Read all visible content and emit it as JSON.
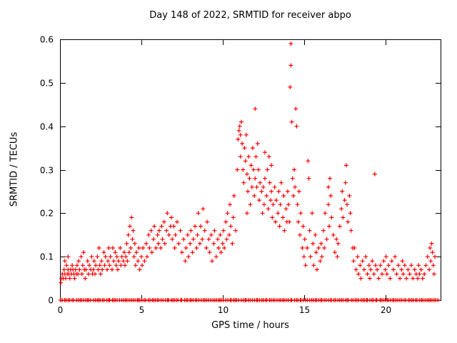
{
  "page": {
    "background": "#ffffff"
  },
  "chart_data": {
    "type": "scatter",
    "title": "Day 148 of 2022, SRMTID for receiver abpo",
    "xlabel": "GPS time / hours",
    "ylabel": "SRMTID / TECUs",
    "xlim": [
      0,
      23.4
    ],
    "ylim": [
      0,
      0.6
    ],
    "x_ticks": [
      0,
      5,
      10,
      15,
      20
    ],
    "x_tick_labels": [
      "0",
      "5",
      "10",
      "15",
      "20"
    ],
    "y_ticks": [
      0,
      0.1,
      0.2,
      0.3,
      0.4,
      0.5,
      0.6
    ],
    "y_tick_labels": [
      "0",
      "0.1",
      "0.2",
      "0.3",
      "0.4",
      "0.5",
      "0.6"
    ],
    "grid": false,
    "legend": "none",
    "marker": "plus",
    "marker_color": "#ff0000",
    "axis_color": "#000000",
    "zero_band": {
      "y": 0,
      "x_min": 0.05,
      "x_max": 23.25,
      "count": 200,
      "note": "dense row of + markers at y=0 across the full time range"
    },
    "points": [
      [
        0.05,
        0.04
      ],
      [
        0.1,
        0.05
      ],
      [
        0.15,
        0.06
      ],
      [
        0.2,
        0.05
      ],
      [
        0.25,
        0.07
      ],
      [
        0.3,
        0.06
      ],
      [
        0.3,
        0.09
      ],
      [
        0.35,
        0.05
      ],
      [
        0.4,
        0.08
      ],
      [
        0.45,
        0.06
      ],
      [
        0.5,
        0.07
      ],
      [
        0.5,
        0.1
      ],
      [
        0.55,
        0.06
      ],
      [
        0.6,
        0.05
      ],
      [
        0.65,
        0.07
      ],
      [
        0.7,
        0.06
      ],
      [
        0.75,
        0.08
      ],
      [
        0.8,
        0.07
      ],
      [
        0.85,
        0.06
      ],
      [
        0.9,
        0.05
      ],
      [
        0.95,
        0.07
      ],
      [
        1.0,
        0.06
      ],
      [
        1.05,
        0.08
      ],
      [
        1.1,
        0.06
      ],
      [
        1.15,
        0.09
      ],
      [
        1.2,
        0.07
      ],
      [
        1.3,
        0.1
      ],
      [
        1.35,
        0.06
      ],
      [
        1.4,
        0.08
      ],
      [
        1.45,
        0.11
      ],
      [
        1.5,
        0.07
      ],
      [
        1.55,
        0.05
      ],
      [
        1.6,
        0.07
      ],
      [
        1.7,
        0.09
      ],
      [
        1.75,
        0.06
      ],
      [
        1.8,
        0.08
      ],
      [
        1.9,
        0.07
      ],
      [
        1.95,
        0.1
      ],
      [
        2.0,
        0.06
      ],
      [
        2.05,
        0.07
      ],
      [
        2.1,
        0.09
      ],
      [
        2.15,
        0.06
      ],
      [
        2.2,
        0.08
      ],
      [
        2.3,
        0.1
      ],
      [
        2.35,
        0.07
      ],
      [
        2.4,
        0.12
      ],
      [
        2.45,
        0.08
      ],
      [
        2.5,
        0.06
      ],
      [
        2.55,
        0.09
      ],
      [
        2.6,
        0.07
      ],
      [
        2.7,
        0.11
      ],
      [
        2.75,
        0.08
      ],
      [
        2.8,
        0.1
      ],
      [
        2.9,
        0.07
      ],
      [
        2.95,
        0.09
      ],
      [
        3.0,
        0.12
      ],
      [
        3.05,
        0.08
      ],
      [
        3.1,
        0.1
      ],
      [
        3.2,
        0.07
      ],
      [
        3.25,
        0.12
      ],
      [
        3.3,
        0.09
      ],
      [
        3.4,
        0.11
      ],
      [
        3.45,
        0.08
      ],
      [
        3.5,
        0.1
      ],
      [
        3.55,
        0.07
      ],
      [
        3.6,
        0.09
      ],
      [
        3.7,
        0.12
      ],
      [
        3.75,
        0.08
      ],
      [
        3.8,
        0.1
      ],
      [
        3.9,
        0.09
      ],
      [
        3.95,
        0.11
      ],
      [
        4.0,
        0.08
      ],
      [
        4.05,
        0.1
      ],
      [
        4.1,
        0.13
      ],
      [
        4.15,
        0.09
      ],
      [
        4.2,
        0.15
      ],
      [
        4.25,
        0.11
      ],
      [
        4.3,
        0.17
      ],
      [
        4.35,
        0.12
      ],
      [
        4.4,
        0.19
      ],
      [
        4.45,
        0.14
      ],
      [
        4.5,
        0.16
      ],
      [
        4.55,
        0.1
      ],
      [
        4.6,
        0.13
      ],
      [
        4.65,
        0.08
      ],
      [
        4.7,
        0.11
      ],
      [
        4.8,
        0.09
      ],
      [
        4.85,
        0.12
      ],
      [
        4.9,
        0.07
      ],
      [
        5.0,
        0.1
      ],
      [
        5.05,
        0.08
      ],
      [
        5.1,
        0.12
      ],
      [
        5.2,
        0.09
      ],
      [
        5.3,
        0.13
      ],
      [
        5.35,
        0.1
      ],
      [
        5.45,
        0.15
      ],
      [
        5.5,
        0.12
      ],
      [
        5.6,
        0.16
      ],
      [
        5.65,
        0.11
      ],
      [
        5.75,
        0.14
      ],
      [
        5.8,
        0.17
      ],
      [
        5.9,
        0.12
      ],
      [
        6.0,
        0.15
      ],
      [
        6.05,
        0.13
      ],
      [
        6.1,
        0.16
      ],
      [
        6.2,
        0.12
      ],
      [
        6.25,
        0.17
      ],
      [
        6.3,
        0.14
      ],
      [
        6.4,
        0.18
      ],
      [
        6.45,
        0.13
      ],
      [
        6.55,
        0.16
      ],
      [
        6.6,
        0.2
      ],
      [
        6.7,
        0.15
      ],
      [
        6.8,
        0.17
      ],
      [
        6.85,
        0.19
      ],
      [
        6.9,
        0.14
      ],
      [
        7.0,
        0.17
      ],
      [
        7.05,
        0.12
      ],
      [
        7.1,
        0.15
      ],
      [
        7.2,
        0.18
      ],
      [
        7.3,
        0.13
      ],
      [
        7.4,
        0.16
      ],
      [
        7.5,
        0.11
      ],
      [
        7.6,
        0.14
      ],
      [
        7.7,
        0.09
      ],
      [
        7.75,
        0.12
      ],
      [
        7.85,
        0.15
      ],
      [
        7.9,
        0.1
      ],
      [
        8.0,
        0.13
      ],
      [
        8.05,
        0.16
      ],
      [
        8.15,
        0.11
      ],
      [
        8.2,
        0.14
      ],
      [
        8.3,
        0.17
      ],
      [
        8.4,
        0.12
      ],
      [
        8.45,
        0.15
      ],
      [
        8.5,
        0.2
      ],
      [
        8.6,
        0.13
      ],
      [
        8.65,
        0.17
      ],
      [
        8.75,
        0.14
      ],
      [
        8.8,
        0.21
      ],
      [
        8.9,
        0.16
      ],
      [
        9.0,
        0.12
      ],
      [
        9.05,
        0.18
      ],
      [
        9.15,
        0.14
      ],
      [
        9.2,
        0.11
      ],
      [
        9.3,
        0.15
      ],
      [
        9.35,
        0.09
      ],
      [
        9.45,
        0.13
      ],
      [
        9.5,
        0.16
      ],
      [
        9.6,
        0.1
      ],
      [
        9.7,
        0.14
      ],
      [
        9.75,
        0.12
      ],
      [
        9.85,
        0.15
      ],
      [
        9.9,
        0.11
      ],
      [
        10.0,
        0.13
      ],
      [
        10.05,
        0.16
      ],
      [
        10.1,
        0.12
      ],
      [
        10.2,
        0.18
      ],
      [
        10.25,
        0.14
      ],
      [
        10.3,
        0.2
      ],
      [
        10.4,
        0.15
      ],
      [
        10.45,
        0.22
      ],
      [
        10.5,
        0.17
      ],
      [
        10.6,
        0.13
      ],
      [
        10.65,
        0.19
      ],
      [
        10.7,
        0.24
      ],
      [
        10.8,
        0.16
      ],
      [
        10.9,
        0.3
      ],
      [
        10.95,
        0.37
      ],
      [
        11.0,
        0.39
      ],
      [
        11.05,
        0.4
      ],
      [
        11.1,
        0.38
      ],
      [
        11.1,
        0.33
      ],
      [
        11.15,
        0.41
      ],
      [
        11.2,
        0.36
      ],
      [
        11.25,
        0.3
      ],
      [
        11.3,
        0.27
      ],
      [
        11.35,
        0.35
      ],
      [
        11.4,
        0.32
      ],
      [
        11.45,
        0.38
      ],
      [
        11.5,
        0.29
      ],
      [
        11.5,
        0.2
      ],
      [
        11.55,
        0.25
      ],
      [
        11.6,
        0.33
      ],
      [
        11.65,
        0.28
      ],
      [
        11.7,
        0.22
      ],
      [
        11.75,
        0.31
      ],
      [
        11.8,
        0.26
      ],
      [
        11.85,
        0.35
      ],
      [
        11.9,
        0.3
      ],
      [
        11.95,
        0.24
      ],
      [
        12.0,
        0.44
      ],
      [
        12.0,
        0.28
      ],
      [
        12.05,
        0.33
      ],
      [
        12.1,
        0.26
      ],
      [
        12.15,
        0.36
      ],
      [
        12.2,
        0.3
      ],
      [
        12.25,
        0.23
      ],
      [
        12.3,
        0.27
      ],
      [
        12.4,
        0.25
      ],
      [
        12.45,
        0.2
      ],
      [
        12.5,
        0.26
      ],
      [
        12.55,
        0.22
      ],
      [
        12.6,
        0.34
      ],
      [
        12.6,
        0.28
      ],
      [
        12.7,
        0.24
      ],
      [
        12.75,
        0.3
      ],
      [
        12.8,
        0.21
      ],
      [
        12.85,
        0.33
      ],
      [
        12.9,
        0.27
      ],
      [
        12.95,
        0.23
      ],
      [
        13.0,
        0.31
      ],
      [
        13.0,
        0.25
      ],
      [
        13.05,
        0.19
      ],
      [
        13.1,
        0.22
      ],
      [
        13.2,
        0.26
      ],
      [
        13.25,
        0.18
      ],
      [
        13.3,
        0.23
      ],
      [
        13.4,
        0.2
      ],
      [
        13.45,
        0.25
      ],
      [
        13.5,
        0.17
      ],
      [
        13.55,
        0.22
      ],
      [
        13.6,
        0.27
      ],
      [
        13.7,
        0.19
      ],
      [
        13.75,
        0.24
      ],
      [
        13.8,
        0.16
      ],
      [
        13.9,
        0.21
      ],
      [
        13.95,
        0.18
      ],
      [
        14.0,
        0.25
      ],
      [
        14.15,
        0.49
      ],
      [
        14.2,
        0.59
      ],
      [
        14.2,
        0.54
      ],
      [
        14.25,
        0.41
      ],
      [
        14.05,
        0.22
      ],
      [
        14.1,
        0.18
      ],
      [
        14.3,
        0.28
      ],
      [
        14.35,
        0.24
      ],
      [
        14.4,
        0.3
      ],
      [
        14.45,
        0.26
      ],
      [
        14.5,
        0.44
      ],
      [
        14.55,
        0.4
      ],
      [
        14.6,
        0.22
      ],
      [
        14.65,
        0.18
      ],
      [
        14.7,
        0.25
      ],
      [
        14.75,
        0.15
      ],
      [
        14.8,
        0.2
      ],
      [
        14.9,
        0.12
      ],
      [
        14.95,
        0.17
      ],
      [
        15.0,
        0.1
      ],
      [
        15.05,
        0.14
      ],
      [
        15.1,
        0.08
      ],
      [
        15.2,
        0.12
      ],
      [
        15.25,
        0.32
      ],
      [
        15.3,
        0.28
      ],
      [
        15.35,
        0.16
      ],
      [
        15.4,
        0.1
      ],
      [
        15.5,
        0.2
      ],
      [
        15.55,
        0.13
      ],
      [
        15.6,
        0.08
      ],
      [
        15.7,
        0.15
      ],
      [
        15.75,
        0.11
      ],
      [
        15.8,
        0.07
      ],
      [
        15.9,
        0.12
      ],
      [
        16.0,
        0.09
      ],
      [
        16.05,
        0.13
      ],
      [
        16.1,
        0.1
      ],
      [
        16.2,
        0.16
      ],
      [
        16.25,
        0.12
      ],
      [
        16.3,
        0.2
      ],
      [
        16.4,
        0.14
      ],
      [
        16.5,
        0.26
      ],
      [
        16.5,
        0.22
      ],
      [
        16.55,
        0.17
      ],
      [
        16.6,
        0.28
      ],
      [
        16.65,
        0.24
      ],
      [
        16.7,
        0.19
      ],
      [
        16.8,
        0.15
      ],
      [
        16.9,
        0.11
      ],
      [
        17.0,
        0.14
      ],
      [
        17.05,
        0.1
      ],
      [
        17.1,
        0.13
      ],
      [
        17.2,
        0.17
      ],
      [
        17.3,
        0.21
      ],
      [
        17.35,
        0.25
      ],
      [
        17.4,
        0.19
      ],
      [
        17.5,
        0.23
      ],
      [
        17.55,
        0.27
      ],
      [
        17.6,
        0.31
      ],
      [
        17.65,
        0.22
      ],
      [
        17.7,
        0.18
      ],
      [
        17.8,
        0.24
      ],
      [
        17.85,
        0.2
      ],
      [
        17.9,
        0.16
      ],
      [
        18.0,
        0.12
      ],
      [
        18.05,
        0.09
      ],
      [
        18.1,
        0.12
      ],
      [
        18.2,
        0.07
      ],
      [
        18.3,
        0.1
      ],
      [
        18.35,
        0.06
      ],
      [
        18.45,
        0.08
      ],
      [
        18.5,
        0.05
      ],
      [
        18.6,
        0.09
      ],
      [
        18.7,
        0.07
      ],
      [
        18.8,
        0.1
      ],
      [
        18.9,
        0.06
      ],
      [
        19.0,
        0.08
      ],
      [
        19.05,
        0.05
      ],
      [
        19.1,
        0.07
      ],
      [
        19.2,
        0.09
      ],
      [
        19.3,
        0.06
      ],
      [
        19.35,
        0.29
      ],
      [
        19.4,
        0.08
      ],
      [
        19.5,
        0.07
      ],
      [
        19.6,
        0.05
      ],
      [
        19.7,
        0.08
      ],
      [
        19.8,
        0.06
      ],
      [
        19.9,
        0.09
      ],
      [
        20.0,
        0.07
      ],
      [
        20.05,
        0.1
      ],
      [
        20.1,
        0.06
      ],
      [
        20.2,
        0.08
      ],
      [
        20.3,
        0.05
      ],
      [
        20.4,
        0.09
      ],
      [
        20.5,
        0.07
      ],
      [
        20.6,
        0.1
      ],
      [
        20.7,
        0.06
      ],
      [
        20.8,
        0.08
      ],
      [
        20.9,
        0.05
      ],
      [
        21.0,
        0.07
      ],
      [
        21.05,
        0.09
      ],
      [
        21.1,
        0.06
      ],
      [
        21.2,
        0.08
      ],
      [
        21.3,
        0.05
      ],
      [
        21.4,
        0.07
      ],
      [
        21.5,
        0.06
      ],
      [
        21.6,
        0.08
      ],
      [
        21.7,
        0.05
      ],
      [
        21.8,
        0.07
      ],
      [
        21.9,
        0.06
      ],
      [
        22.0,
        0.05
      ],
      [
        22.05,
        0.08
      ],
      [
        22.1,
        0.06
      ],
      [
        22.2,
        0.07
      ],
      [
        22.3,
        0.05
      ],
      [
        22.4,
        0.06
      ],
      [
        22.5,
        0.08
      ],
      [
        22.6,
        0.1
      ],
      [
        22.7,
        0.07
      ],
      [
        22.75,
        0.12
      ],
      [
        22.8,
        0.09
      ],
      [
        22.85,
        0.13
      ],
      [
        22.9,
        0.11
      ],
      [
        22.95,
        0.08
      ],
      [
        23.0,
        0.06
      ],
      [
        23.05,
        0.1
      ]
    ]
  }
}
